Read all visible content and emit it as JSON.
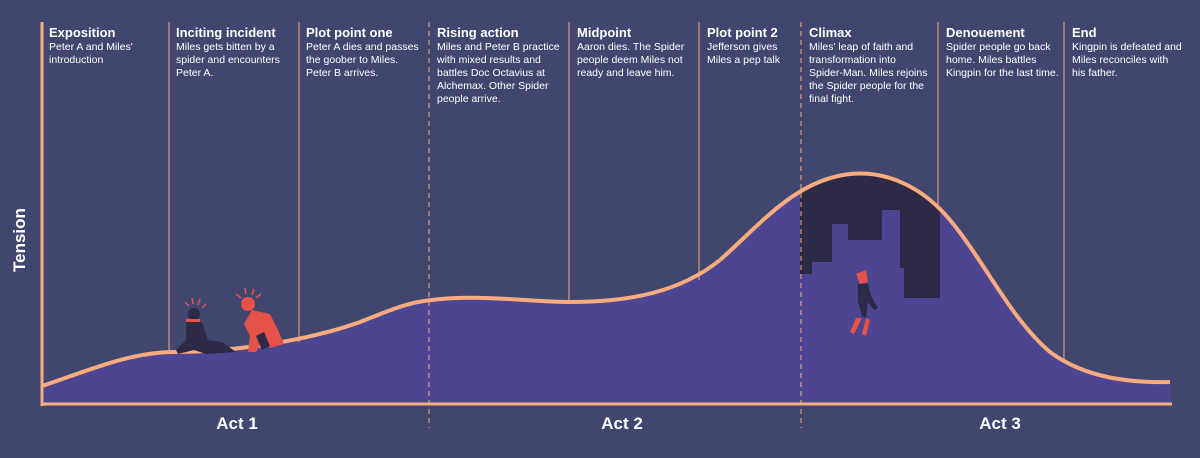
{
  "y_axis_label": "Tension",
  "stages": [
    {
      "title": "Exposition",
      "desc": "Peter A and Miles' introduction"
    },
    {
      "title": "Inciting incident",
      "desc": "Miles gets bitten by a spider and encounters Peter A."
    },
    {
      "title": "Plot point one",
      "desc": "Peter A dies and passes the goober to Miles. Peter B arrives."
    },
    {
      "title": "Rising action",
      "desc": "Miles and Peter B practice with mixed results and battles Doc Octavius at Alchemax. Other Spider people arrive."
    },
    {
      "title": "Midpoint",
      "desc": "Aaron dies. The Spider people deem Miles not ready and leave him."
    },
    {
      "title": "Plot point 2",
      "desc": "Jefferson gives Miles a pep talk"
    },
    {
      "title": "Climax",
      "desc": "Miles' leap of faith and transformation into Spider-Man. Miles rejoins the Spider people for the final fight."
    },
    {
      "title": "Denouement",
      "desc": "Spider people go back home. Miles battles Kingpin for the last time."
    },
    {
      "title": "End",
      "desc": "Kingpin is defeated and Miles reconciles with his father."
    }
  ],
  "acts": [
    "Act 1",
    "Act 2",
    "Act 3"
  ],
  "colors": {
    "background": "#41466f",
    "area_fill": "#4b4592",
    "curve_line": "#f7ab7e",
    "divider_line": "#f7ab7e",
    "figure_red": "#e4524a",
    "figure_dark": "#2c2a46",
    "skyline": "#2c2a46"
  },
  "icons": [
    "kneeling-figure-icon",
    "crouching-spider-figure-icon",
    "falling-spider-man-icon",
    "city-skyline-icon"
  ]
}
